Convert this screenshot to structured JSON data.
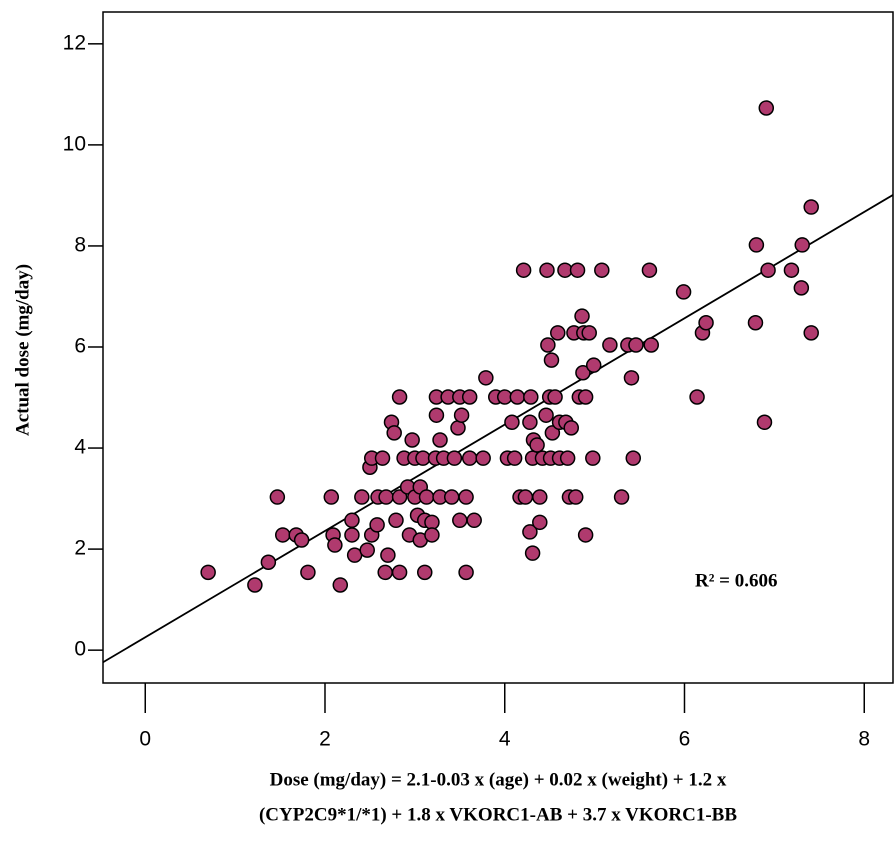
{
  "chart_data": {
    "type": "scatter",
    "y_label": "Actual dose (mg/day)",
    "x_label": [
      "Dose (mg/day) = 2.1-0.03 x (age) + 0.02 x (weight) + 1.2 x",
      "(CYP2C9*1/*1) + 1.8 x VKORC1-AB + 3.7 x VKORC1-BB"
    ],
    "annotation": "R² = 0.606",
    "color": "#b03a6e",
    "xlim": [
      -0.47,
      8.32
    ],
    "ylim": [
      -0.65,
      12.63
    ],
    "xticks": [
      0,
      2,
      4,
      6,
      8
    ],
    "yticks": [
      0,
      2,
      4,
      6,
      8,
      10,
      12
    ],
    "trendline": {
      "x": [
        -0.47,
        8.32
      ],
      "y": [
        -0.24,
        9.01
      ]
    },
    "x": [
      0.7,
      1.22,
      1.37,
      1.47,
      1.53,
      1.68,
      1.74,
      1.81,
      2.07,
      2.09,
      2.11,
      2.17,
      2.3,
      2.3,
      2.33,
      2.41,
      2.47,
      2.5,
      2.52,
      2.52,
      2.58,
      2.59,
      2.64,
      2.67,
      2.68,
      2.7,
      2.74,
      2.77,
      2.79,
      2.83,
      2.83,
      2.83,
      2.88,
      2.92,
      2.94,
      2.97,
      3.0,
      3.0,
      3.03,
      3.06,
      3.06,
      3.09,
      3.11,
      3.11,
      3.13,
      3.19,
      3.19,
      3.23,
      3.24,
      3.24,
      3.28,
      3.28,
      3.32,
      3.37,
      3.41,
      3.44,
      3.48,
      3.5,
      3.5,
      3.52,
      3.57,
      3.57,
      3.61,
      3.61,
      3.66,
      3.76,
      3.79,
      3.9,
      4.0,
      4.03,
      4.08,
      4.11,
      4.14,
      4.17,
      4.21,
      4.23,
      4.28,
      4.28,
      4.29,
      4.31,
      4.31,
      4.32,
      4.36,
      4.39,
      4.39,
      4.42,
      4.46,
      4.47,
      4.48,
      4.5,
      4.51,
      4.52,
      4.53,
      4.56,
      4.59,
      4.61,
      4.61,
      4.67,
      4.68,
      4.7,
      4.72,
      4.74,
      4.77,
      4.79,
      4.81,
      4.83,
      4.86,
      4.87,
      4.88,
      4.9,
      4.9,
      4.94,
      4.98,
      4.99,
      5.08,
      5.17,
      5.3,
      5.37,
      5.41,
      5.43,
      5.46,
      5.61,
      5.63,
      5.99,
      6.14,
      6.2,
      6.24,
      6.79,
      6.8,
      6.89,
      6.91,
      6.93,
      7.19,
      7.3,
      7.31,
      7.41,
      7.41
    ],
    "values": [
      1.54,
      1.29,
      1.74,
      3.03,
      2.28,
      2.28,
      2.18,
      1.54,
      3.03,
      2.28,
      2.08,
      1.29,
      2.57,
      2.28,
      1.88,
      3.03,
      1.98,
      3.62,
      2.28,
      3.8,
      2.48,
      3.03,
      3.8,
      1.54,
      3.03,
      1.88,
      4.51,
      4.3,
      2.57,
      3.03,
      5.01,
      1.54,
      3.8,
      3.23,
      2.28,
      4.16,
      3.03,
      3.8,
      2.67,
      3.23,
      2.18,
      3.8,
      2.57,
      1.54,
      3.03,
      2.53,
      2.28,
      3.8,
      5.01,
      4.65,
      4.16,
      3.03,
      3.8,
      5.01,
      3.03,
      3.8,
      4.4,
      5.01,
      2.57,
      4.65,
      3.03,
      1.54,
      3.8,
      5.01,
      2.57,
      3.8,
      5.39,
      5.01,
      5.01,
      3.8,
      4.51,
      3.8,
      5.01,
      3.03,
      7.52,
      3.03,
      4.51,
      2.34,
      5.01,
      3.8,
      1.92,
      4.16,
      4.06,
      3.03,
      2.53,
      3.8,
      4.65,
      7.52,
      6.04,
      5.01,
      3.8,
      5.74,
      4.3,
      5.01,
      6.28,
      4.51,
      3.8,
      7.52,
      4.51,
      3.8,
      3.03,
      4.4,
      6.28,
      3.03,
      7.52,
      5.01,
      6.61,
      5.49,
      6.28,
      5.01,
      2.28,
      6.28,
      3.8,
      5.64,
      7.52,
      6.04,
      3.03,
      6.04,
      5.39,
      3.8,
      6.04,
      7.52,
      6.04,
      7.09,
      5.01,
      6.28,
      6.48,
      6.48,
      8.02,
      4.51,
      10.73,
      7.52,
      7.52,
      7.17,
      8.02,
      8.77,
      6.28
    ]
  }
}
